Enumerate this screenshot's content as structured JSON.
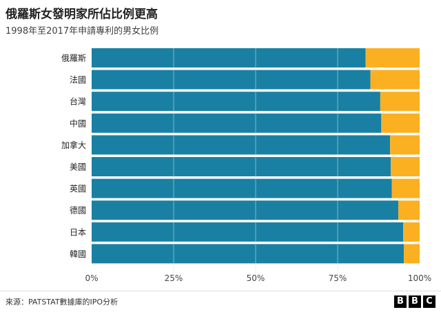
{
  "title": "俄羅斯女發明家所佔比例更高",
  "subtitle": "1998年至2017年申請專利的男女比例",
  "source": "來源：PATSTAT數據庫的IPO分析",
  "logo_letters": [
    "B",
    "B",
    "C"
  ],
  "colors": {
    "male": "#1a80a3",
    "female": "#fbb022",
    "grid": "#d8e2e6",
    "text": "#222222"
  },
  "chart_data": {
    "type": "bar",
    "orientation": "horizontal",
    "stacked_percent": true,
    "categories": [
      "俄羅斯",
      "法國",
      "台灣",
      "中國",
      "加拿大",
      "美國",
      "英國",
      "德國",
      "日本",
      "韓國"
    ],
    "series": [
      {
        "values": [
          83.5,
          85,
          88,
          88.3,
          91,
          91.2,
          91.5,
          93.5,
          95,
          95.2
        ]
      },
      {
        "values": [
          16.5,
          15,
          12,
          11.7,
          9,
          8.8,
          8.5,
          6.5,
          5,
          4.8
        ]
      }
    ],
    "xlim": [
      0,
      100
    ],
    "xticks": [
      "0%",
      "25%",
      "50%",
      "75%",
      "100%"
    ],
    "xtick_values": [
      0,
      25,
      50,
      75,
      100
    ],
    "grid": true
  }
}
